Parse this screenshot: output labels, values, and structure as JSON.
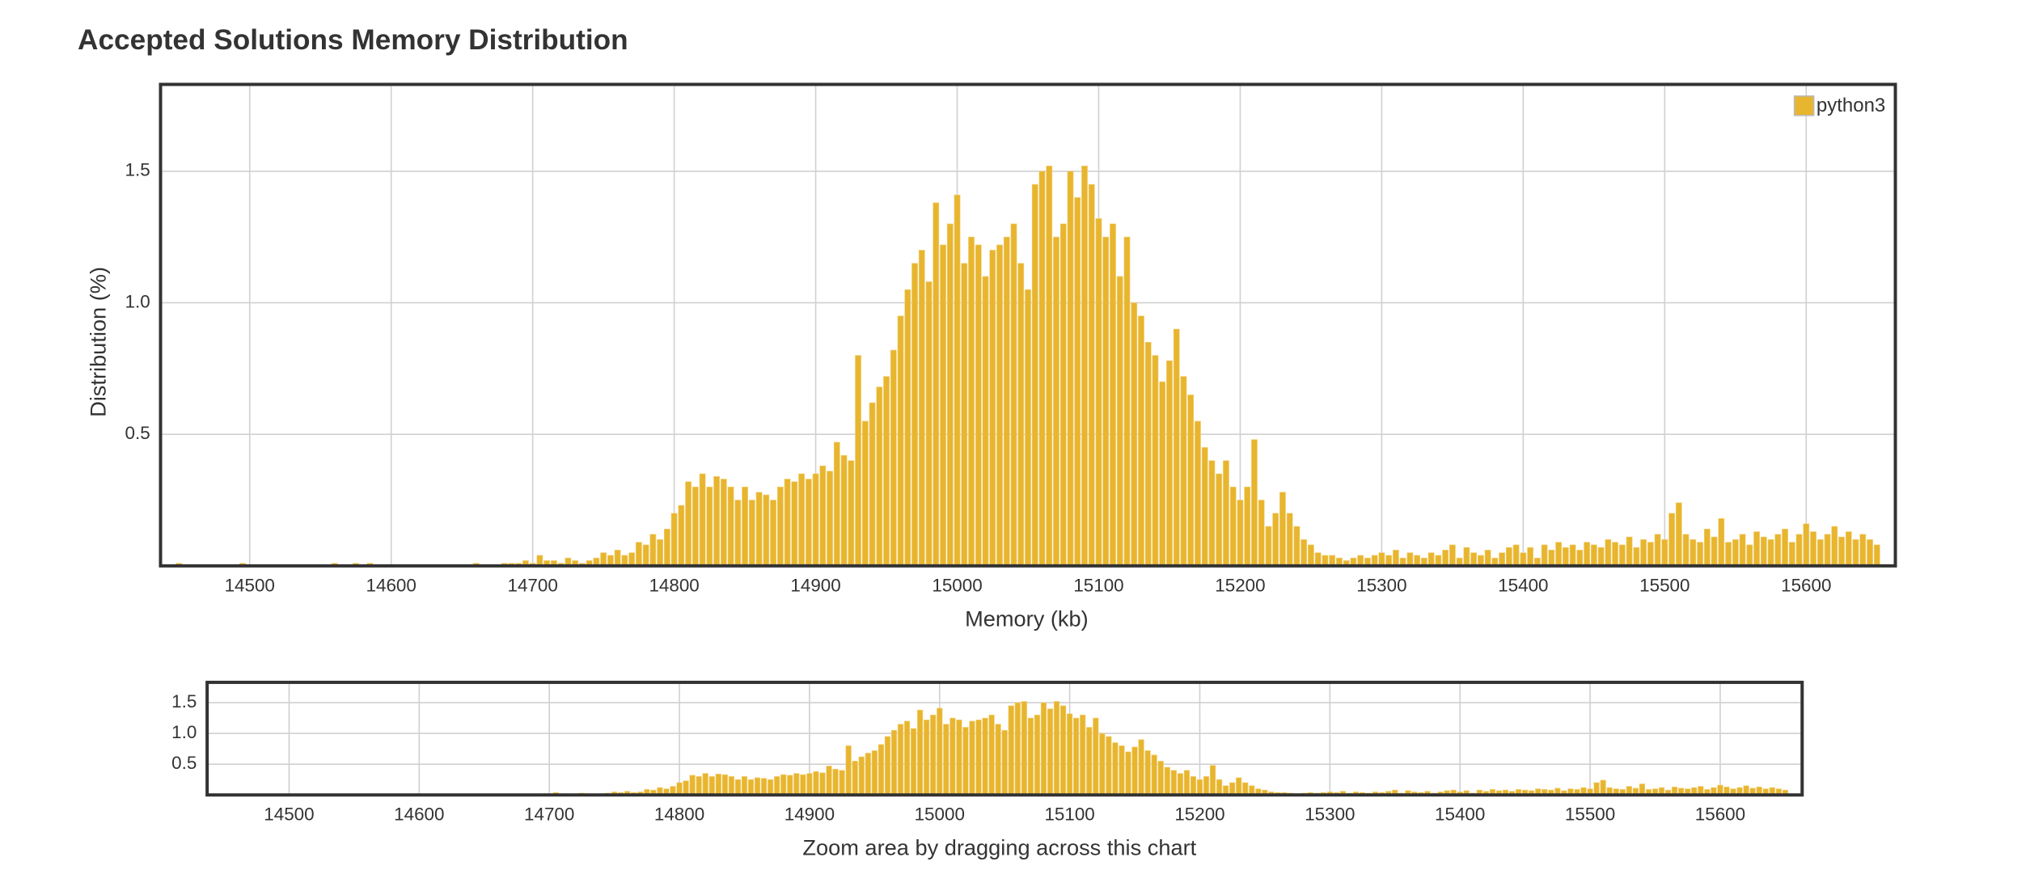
{
  "chart_data": {
    "type": "bar",
    "title": "Accepted Solutions Memory Distribution",
    "xlabel": "Memory (kb)",
    "ylabel": "Distribution (%)",
    "navigator_label": "Zoom area by dragging across this chart",
    "series": [
      {
        "name": "python3",
        "color": "#e8b52f",
        "x": [
          14450,
          14455,
          14460,
          14465,
          14470,
          14475,
          14480,
          14485,
          14490,
          14495,
          14500,
          14505,
          14510,
          14515,
          14520,
          14525,
          14530,
          14535,
          14540,
          14545,
          14550,
          14555,
          14560,
          14565,
          14570,
          14575,
          14580,
          14585,
          14590,
          14595,
          14600,
          14605,
          14610,
          14615,
          14620,
          14625,
          14630,
          14635,
          14640,
          14645,
          14650,
          14655,
          14660,
          14665,
          14670,
          14675,
          14680,
          14685,
          14690,
          14695,
          14700,
          14705,
          14710,
          14715,
          14720,
          14725,
          14730,
          14735,
          14740,
          14745,
          14750,
          14755,
          14760,
          14765,
          14770,
          14775,
          14780,
          14785,
          14790,
          14795,
          14800,
          14805,
          14810,
          14815,
          14820,
          14825,
          14830,
          14835,
          14840,
          14845,
          14850,
          14855,
          14860,
          14865,
          14870,
          14875,
          14880,
          14885,
          14890,
          14895,
          14900,
          14905,
          14910,
          14915,
          14920,
          14925,
          14930,
          14935,
          14940,
          14945,
          14950,
          14955,
          14960,
          14965,
          14970,
          14975,
          14980,
          14985,
          14990,
          14995,
          15000,
          15005,
          15010,
          15015,
          15020,
          15025,
          15030,
          15035,
          15040,
          15045,
          15050,
          15055,
          15060,
          15065,
          15070,
          15075,
          15080,
          15085,
          15090,
          15095,
          15100,
          15105,
          15110,
          15115,
          15120,
          15125,
          15130,
          15135,
          15140,
          15145,
          15150,
          15155,
          15160,
          15165,
          15170,
          15175,
          15180,
          15185,
          15190,
          15195,
          15200,
          15205,
          15210,
          15215,
          15220,
          15225,
          15230,
          15235,
          15240,
          15245,
          15250,
          15255,
          15260,
          15265,
          15270,
          15275,
          15280,
          15285,
          15290,
          15295,
          15300,
          15305,
          15310,
          15315,
          15320,
          15325,
          15330,
          15335,
          15340,
          15345,
          15350,
          15355,
          15360,
          15365,
          15370,
          15375,
          15380,
          15385,
          15390,
          15395,
          15400,
          15405,
          15410,
          15415,
          15420,
          15425,
          15430,
          15435,
          15440,
          15445,
          15450,
          15455,
          15460,
          15465,
          15470,
          15475,
          15480,
          15485,
          15490,
          15495,
          15500,
          15505,
          15510,
          15515,
          15520,
          15525,
          15530,
          15535,
          15540,
          15545,
          15550,
          15555,
          15560,
          15565,
          15570,
          15575,
          15580,
          15585,
          15590,
          15595,
          15600,
          15605,
          15610,
          15615,
          15620,
          15625,
          15630,
          15635,
          15640,
          15645,
          15650
        ],
        "values": [
          0.01,
          0,
          0,
          0,
          0,
          0,
          0,
          0,
          0,
          0.01,
          0,
          0,
          0,
          0,
          0,
          0,
          0,
          0,
          0,
          0,
          0,
          0,
          0.01,
          0,
          0,
          0.01,
          0,
          0.01,
          0,
          0,
          0,
          0,
          0,
          0,
          0,
          0,
          0,
          0,
          0,
          0,
          0,
          0,
          0.01,
          0,
          0,
          0,
          0.01,
          0.01,
          0.01,
          0.02,
          0.01,
          0.04,
          0.02,
          0.02,
          0.01,
          0.03,
          0.02,
          0.01,
          0.02,
          0.03,
          0.05,
          0.04,
          0.06,
          0.04,
          0.05,
          0.09,
          0.08,
          0.12,
          0.1,
          0.14,
          0.2,
          0.23,
          0.32,
          0.3,
          0.35,
          0.3,
          0.34,
          0.33,
          0.3,
          0.25,
          0.3,
          0.25,
          0.28,
          0.27,
          0.25,
          0.3,
          0.33,
          0.32,
          0.35,
          0.33,
          0.35,
          0.38,
          0.36,
          0.47,
          0.42,
          0.4,
          0.8,
          0.55,
          0.62,
          0.68,
          0.72,
          0.82,
          0.95,
          1.05,
          1.15,
          1.2,
          1.08,
          1.38,
          1.22,
          1.3,
          1.41,
          1.15,
          1.25,
          1.22,
          1.1,
          1.2,
          1.22,
          1.25,
          1.3,
          1.15,
          1.05,
          1.45,
          1.5,
          1.52,
          1.25,
          1.3,
          1.5,
          1.4,
          1.52,
          1.45,
          1.32,
          1.25,
          1.3,
          1.1,
          1.25,
          1.0,
          0.95,
          0.85,
          0.8,
          0.7,
          0.78,
          0.9,
          0.72,
          0.65,
          0.55,
          0.45,
          0.4,
          0.35,
          0.4,
          0.3,
          0.25,
          0.3,
          0.48,
          0.25,
          0.15,
          0.2,
          0.28,
          0.2,
          0.15,
          0.1,
          0.08,
          0.05,
          0.04,
          0.04,
          0.03,
          0.02,
          0.03,
          0.04,
          0.03,
          0.04,
          0.05,
          0.04,
          0.06,
          0.03,
          0.05,
          0.04,
          0.03,
          0.05,
          0.04,
          0.06,
          0.08,
          0.03,
          0.07,
          0.05,
          0.04,
          0.06,
          0.03,
          0.05,
          0.07,
          0.08,
          0.05,
          0.07,
          0.03,
          0.08,
          0.06,
          0.09,
          0.07,
          0.08,
          0.06,
          0.09,
          0.08,
          0.07,
          0.1,
          0.09,
          0.08,
          0.11,
          0.07,
          0.1,
          0.09,
          0.12,
          0.1,
          0.2,
          0.24,
          0.12,
          0.1,
          0.09,
          0.14,
          0.11,
          0.18,
          0.09,
          0.1,
          0.12,
          0.08,
          0.13,
          0.11,
          0.1,
          0.12,
          0.14,
          0.09,
          0.12,
          0.16,
          0.13,
          0.1,
          0.12,
          0.15,
          0.11,
          0.13,
          0.1,
          0.12,
          0.1,
          0.08
        ]
      }
    ],
    "xlim": [
      14437,
      15663
    ],
    "xticks": [
      14500,
      14600,
      14700,
      14800,
      14900,
      15000,
      15100,
      15200,
      15300,
      15400,
      15500,
      15600
    ],
    "ylim": [
      0,
      1.83
    ],
    "yticks": [
      0.5,
      {
        "value": 1,
        "label": "1.0"
      },
      1.5
    ],
    "grid": true,
    "legend": "top-right"
  }
}
